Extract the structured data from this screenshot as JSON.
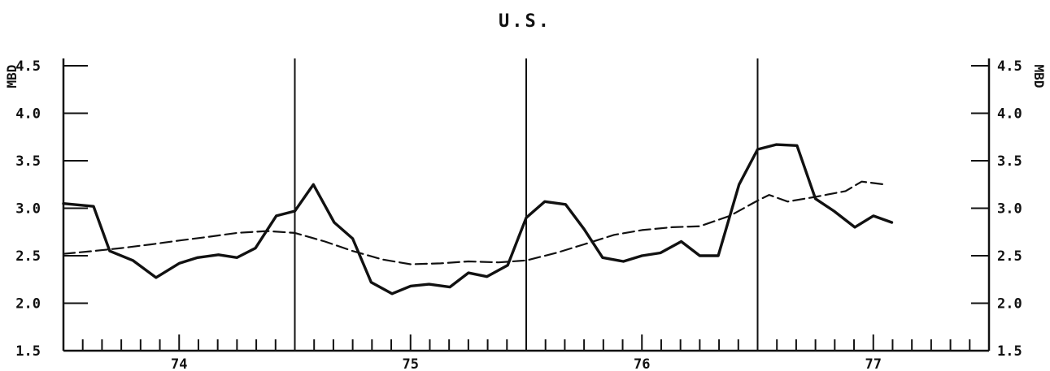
{
  "chart_data": {
    "type": "line",
    "title": "U.S.",
    "ylabel": "MBD",
    "ylim": [
      1.5,
      4.5
    ],
    "yticks": [
      "1.5",
      "2.0",
      "2.5",
      "3.0",
      "3.5",
      "4.0",
      "4.5"
    ],
    "xlim": [
      73.5,
      77.5
    ],
    "xticks": [
      "74",
      "75",
      "76",
      "77"
    ],
    "grid": false,
    "series": [
      {
        "style": "solid",
        "x": [
          73.5,
          73.63,
          73.7,
          73.8,
          73.9,
          74.0,
          74.08,
          74.17,
          74.25,
          74.33,
          74.42,
          74.5,
          74.58,
          74.67,
          74.75,
          74.83,
          74.92,
          75.0,
          75.08,
          75.17,
          75.25,
          75.33,
          75.42,
          75.5,
          75.58,
          75.67,
          75.75,
          75.83,
          75.92,
          76.0,
          76.08,
          76.17,
          76.25,
          76.33,
          76.42,
          76.5,
          76.58,
          76.67,
          76.75,
          76.83,
          76.92,
          77.0,
          77.08
        ],
        "values": [
          3.05,
          3.02,
          2.55,
          2.45,
          2.27,
          2.42,
          2.48,
          2.51,
          2.48,
          2.58,
          2.92,
          2.97,
          3.25,
          2.85,
          2.68,
          2.22,
          2.1,
          2.18,
          2.2,
          2.17,
          2.32,
          2.28,
          2.4,
          2.9,
          3.07,
          3.04,
          2.78,
          2.48,
          2.44,
          2.5,
          2.53,
          2.65,
          2.5,
          2.5,
          3.25,
          3.62,
          3.67,
          3.66,
          3.1,
          2.97,
          2.8,
          2.92,
          2.85
        ]
      },
      {
        "style": "dashed",
        "x": [
          73.5,
          73.63,
          73.75,
          73.88,
          74.0,
          74.13,
          74.25,
          74.38,
          74.5,
          74.63,
          74.75,
          74.88,
          75.0,
          75.13,
          75.25,
          75.38,
          75.5,
          75.63,
          75.75,
          75.88,
          76.0,
          76.13,
          76.25,
          76.38,
          76.5,
          76.55,
          76.63,
          76.75,
          76.88,
          76.95,
          77.05
        ],
        "values": [
          2.52,
          2.55,
          2.58,
          2.62,
          2.66,
          2.7,
          2.74,
          2.76,
          2.74,
          2.65,
          2.55,
          2.46,
          2.41,
          2.42,
          2.44,
          2.43,
          2.45,
          2.53,
          2.62,
          2.72,
          2.77,
          2.8,
          2.81,
          2.92,
          3.08,
          3.14,
          3.07,
          3.12,
          3.18,
          3.28,
          3.25
        ]
      }
    ]
  }
}
